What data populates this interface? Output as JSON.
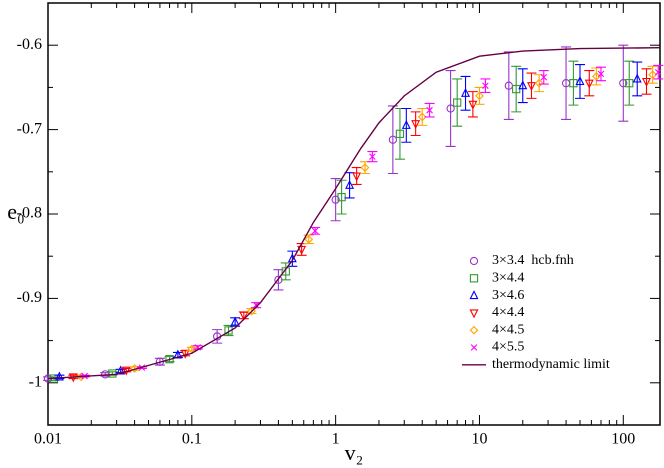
{
  "chart_data": {
    "type": "scatter",
    "xlabel": "v₂",
    "ylabel": "e₀",
    "xscale": "log",
    "xlim": [
      0.01,
      180
    ],
    "ylim": [
      -1.05,
      -0.55
    ],
    "xticks": [
      0.01,
      0.1,
      1,
      10,
      100
    ],
    "xminorticks": [
      0.02,
      0.03,
      0.04,
      0.05,
      0.06,
      0.07,
      0.08,
      0.09,
      0.2,
      0.3,
      0.4,
      0.5,
      0.6,
      0.7,
      0.8,
      0.9,
      2,
      3,
      4,
      5,
      6,
      7,
      8,
      9,
      20,
      30,
      40,
      50,
      60,
      70,
      80,
      90
    ],
    "yticks": [
      -1,
      -0.9,
      -0.8,
      -0.7,
      -0.6
    ],
    "yminorticks": [
      -1.05,
      -0.95,
      -0.85,
      -0.75,
      -0.65,
      -0.55
    ],
    "legend": "lower right",
    "series": [
      {
        "name": "3×3.4  hcb.fnh",
        "color": "#9933cc",
        "marker": "circle",
        "x": [
          0.01,
          0.025,
          0.06,
          0.15,
          0.4,
          1.0,
          2.5,
          6.3,
          16,
          40,
          100
        ],
        "values": [
          -0.995,
          -0.99,
          -0.975,
          -0.945,
          -0.878,
          -0.783,
          -0.712,
          -0.675,
          -0.648,
          -0.645,
          -0.645
        ],
        "errors": [
          0.002,
          0.002,
          0.004,
          0.008,
          0.012,
          0.025,
          0.04,
          0.045,
          0.04,
          0.043,
          0.045
        ]
      },
      {
        "name": "3×4.4",
        "color": "#339933",
        "marker": "square",
        "x": [
          0.011,
          0.028,
          0.07,
          0.18,
          0.45,
          1.1,
          2.8,
          7,
          18,
          45,
          110
        ],
        "values": [
          -0.995,
          -0.989,
          -0.972,
          -0.938,
          -0.868,
          -0.78,
          -0.705,
          -0.668,
          -0.652,
          -0.645,
          -0.645
        ],
        "errors": [
          0.002,
          0.002,
          0.003,
          0.006,
          0.01,
          0.02,
          0.03,
          0.028,
          0.027,
          0.026,
          0.026
        ]
      },
      {
        "name": "3×4.6",
        "color": "#0000ff",
        "marker": "triangle-up",
        "x": [
          0.012,
          0.032,
          0.08,
          0.2,
          0.5,
          1.25,
          3.1,
          8,
          20,
          50,
          125
        ],
        "values": [
          -0.993,
          -0.986,
          -0.967,
          -0.928,
          -0.853,
          -0.766,
          -0.695,
          -0.657,
          -0.648,
          -0.643,
          -0.64
        ],
        "errors": [
          0.002,
          0.002,
          0.003,
          0.005,
          0.009,
          0.015,
          0.02,
          0.02,
          0.02,
          0.02,
          0.02
        ]
      },
      {
        "name": "4×4.4",
        "color": "#ff0000",
        "marker": "triangle-down",
        "x": [
          0.015,
          0.035,
          0.09,
          0.23,
          0.58,
          1.4,
          3.6,
          9,
          23,
          58,
          145
        ],
        "values": [
          -0.993,
          -0.985,
          -0.965,
          -0.92,
          -0.842,
          -0.755,
          -0.693,
          -0.67,
          -0.648,
          -0.645,
          -0.643
        ],
        "errors": [
          0.002,
          0.002,
          0.003,
          0.004,
          0.007,
          0.01,
          0.014,
          0.015,
          0.015,
          0.015,
          0.015
        ]
      },
      {
        "name": "4×4.5",
        "color": "#ffa500",
        "marker": "diamond",
        "x": [
          0.017,
          0.04,
          0.1,
          0.26,
          0.65,
          1.6,
          4,
          10,
          26,
          65,
          160
        ],
        "values": [
          -0.993,
          -0.983,
          -0.96,
          -0.915,
          -0.83,
          -0.745,
          -0.685,
          -0.66,
          -0.645,
          -0.637,
          -0.635
        ],
        "errors": [
          0.001,
          0.002,
          0.002,
          0.003,
          0.005,
          0.007,
          0.01,
          0.01,
          0.01,
          0.01,
          0.01
        ]
      },
      {
        "name": "4×5.5",
        "color": "#ff00ff",
        "marker": "x",
        "x": [
          0.018,
          0.045,
          0.11,
          0.28,
          0.72,
          1.8,
          4.5,
          11,
          28,
          70,
          175
        ],
        "values": [
          -0.992,
          -0.982,
          -0.958,
          -0.908,
          -0.82,
          -0.732,
          -0.677,
          -0.648,
          -0.638,
          -0.634,
          -0.632
        ],
        "errors": [
          0.001,
          0.001,
          0.002,
          0.003,
          0.004,
          0.006,
          0.008,
          0.008,
          0.008,
          0.008,
          0.008
        ]
      },
      {
        "name": "thermodynamic limit",
        "color": "#660044",
        "marker": "line",
        "x": [
          0.01,
          0.03,
          0.1,
          0.2,
          0.3,
          0.5,
          0.7,
          1,
          1.5,
          2,
          3,
          5,
          10,
          20,
          50,
          180
        ],
        "values": [
          -0.995,
          -0.99,
          -0.965,
          -0.935,
          -0.905,
          -0.855,
          -0.81,
          -0.77,
          -0.722,
          -0.692,
          -0.66,
          -0.632,
          -0.613,
          -0.607,
          -0.604,
          -0.603
        ]
      }
    ]
  }
}
